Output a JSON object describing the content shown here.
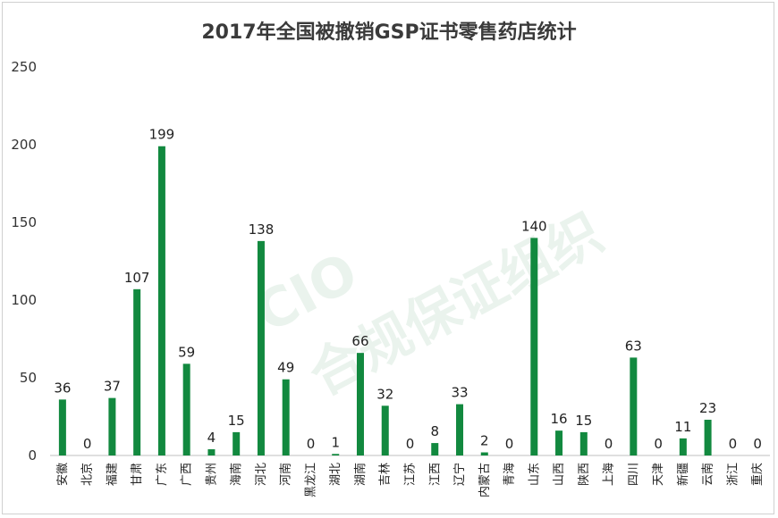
{
  "chart_data": {
    "type": "bar",
    "title": "2017年全国被撤销GSP证书零售药店统计",
    "categories": [
      "安徽",
      "北京",
      "福建",
      "甘肃",
      "广东",
      "广西",
      "贵州",
      "海南",
      "河北",
      "河南",
      "黑龙江",
      "湖北",
      "湖南",
      "吉林",
      "江苏",
      "江西",
      "辽宁",
      "内蒙古",
      "青海",
      "山东",
      "山西",
      "陕西",
      "上海",
      "四川",
      "天津",
      "新疆",
      "云南",
      "浙江",
      "重庆"
    ],
    "values": [
      36,
      0,
      37,
      107,
      199,
      59,
      4,
      15,
      138,
      49,
      0,
      1,
      66,
      32,
      0,
      8,
      33,
      2,
      0,
      140,
      16,
      15,
      0,
      63,
      0,
      11,
      23,
      0,
      0
    ],
    "ylim": [
      0,
      250
    ],
    "yticks": [
      0,
      50,
      100,
      150,
      200,
      250
    ],
    "bar_color": "#12893f",
    "grid": false,
    "legend": "none",
    "xlabel": "",
    "ylabel": ""
  },
  "watermark": {
    "logo": "CIO",
    "text": "合规保证组织",
    "color": "#eaf3ed"
  }
}
